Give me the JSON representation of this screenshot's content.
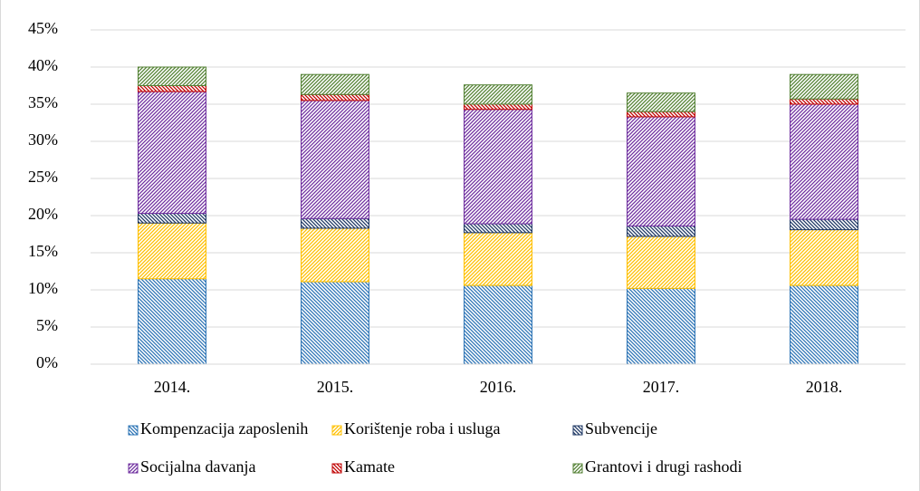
{
  "chart_data": {
    "type": "stacked_bar",
    "categories": [
      "2014.",
      "2015.",
      "2016.",
      "2017.",
      "2018."
    ],
    "series": [
      {
        "name": "Kompenzacija zaposlenih",
        "color": "#2e75b6",
        "values": [
          11.5,
          11.1,
          10.6,
          10.2,
          10.6
        ]
      },
      {
        "name": "Korištenje roba i usluga",
        "color": "#ffc000",
        "values": [
          7.5,
          7.2,
          7.1,
          7.0,
          7.5
        ]
      },
      {
        "name": "Subvencije",
        "color": "#1f3864",
        "values": [
          1.3,
          1.3,
          1.2,
          1.4,
          1.4
        ]
      },
      {
        "name": "Socijalna davanja",
        "color": "#7030a0",
        "values": [
          16.4,
          15.9,
          15.4,
          14.7,
          15.5
        ]
      },
      {
        "name": "Kamate",
        "color": "#c00000",
        "values": [
          0.8,
          0.8,
          0.7,
          0.7,
          0.7
        ]
      },
      {
        "name": "Grantovi i drugi rashodi",
        "color": "#548235",
        "values": [
          2.5,
          2.7,
          2.6,
          2.5,
          3.3
        ]
      }
    ],
    "ylim": [
      0,
      45
    ],
    "yticks": [
      {
        "value": 0,
        "label": "0%"
      },
      {
        "value": 5,
        "label": "5%"
      },
      {
        "value": 10,
        "label": "10%"
      },
      {
        "value": 15,
        "label": "15%"
      },
      {
        "value": 20,
        "label": "20%"
      },
      {
        "value": 25,
        "label": "25%"
      },
      {
        "value": 30,
        "label": "30%"
      },
      {
        "value": 35,
        "label": "35%"
      },
      {
        "value": 40,
        "label": "40%"
      },
      {
        "value": 45,
        "label": "45%"
      }
    ],
    "grid": true,
    "legend": "bottom"
  }
}
